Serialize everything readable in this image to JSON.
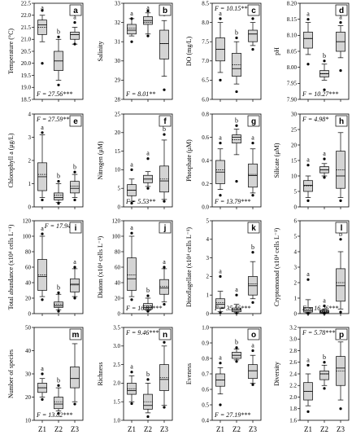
{
  "x_labels": [
    "Z1",
    "Z2",
    "Z3"
  ],
  "chart_data": [
    {
      "type": "box",
      "letter": "a",
      "ylabel": "Temperature (°C)",
      "ylim": [
        18.5,
        22.5
      ],
      "yticks": [
        18.5,
        19.0,
        19.5,
        20.0,
        20.5,
        21.0,
        21.5,
        22.0,
        22.5
      ],
      "decimals": 1,
      "stat_label": "F = 27.56***",
      "stat_pos": "bottom-left",
      "boxes": [
        {
          "lo": 20.9,
          "q1": 21.2,
          "median": 21.6,
          "q3": 21.8,
          "hi": 22.0,
          "mean": 21.5,
          "outliers": [
            20.0,
            22.2
          ],
          "sig": "a"
        },
        {
          "lo": 19.3,
          "q1": 19.7,
          "median": 20.1,
          "q3": 20.5,
          "hi": 21.0,
          "mean": 20.1,
          "outliers": [
            19.1,
            21.1
          ],
          "sig": "b"
        },
        {
          "lo": 20.8,
          "q1": 21.0,
          "median": 21.2,
          "q3": 21.3,
          "hi": 21.5,
          "mean": 21.2,
          "outliers": [
            20.8,
            21.7
          ],
          "sig": "a"
        }
      ]
    },
    {
      "type": "box",
      "letter": "b",
      "ylabel": "Salinity",
      "ylim": [
        28,
        33
      ],
      "yticks": [
        28,
        29,
        30,
        31,
        32,
        33
      ],
      "decimals": 0,
      "stat_label": "F = 8.01**",
      "stat_pos": "bottom-left",
      "boxes": [
        {
          "lo": 31.3,
          "q1": 31.4,
          "median": 31.6,
          "q3": 31.9,
          "hi": 32.2,
          "mean": 31.7,
          "outliers": [
            31.0,
            32.2
          ],
          "sig": "a"
        },
        {
          "lo": 31.4,
          "q1": 31.9,
          "median": 32.1,
          "q3": 32.3,
          "hi": 32.5,
          "mean": 32.0,
          "outliers": [
            31.3,
            32.6
          ],
          "sig": "a"
        },
        {
          "lo": 29.2,
          "q1": 30.1,
          "median": 30.9,
          "q3": 31.6,
          "hi": 32.1,
          "mean": 30.9,
          "outliers": [
            28.5,
            32.4
          ],
          "sig": "b"
        }
      ]
    },
    {
      "type": "box",
      "letter": "c",
      "ylabel": "DO (mg/L)",
      "ylim": [
        6.0,
        8.5
      ],
      "yticks": [
        6.0,
        6.5,
        7.0,
        7.5,
        8.0,
        8.5
      ],
      "decimals": 1,
      "stat_label": "F = 10.15***",
      "stat_pos": "top-left",
      "boxes": [
        {
          "lo": 6.7,
          "q1": 7.0,
          "median": 7.3,
          "q3": 7.6,
          "hi": 8.0,
          "mean": 7.3,
          "outliers": [
            6.5,
            8.1
          ],
          "sig": "a"
        },
        {
          "lo": 6.4,
          "q1": 6.6,
          "median": 6.8,
          "q3": 7.2,
          "hi": 7.5,
          "mean": 6.9,
          "outliers": [
            6.2,
            7.6
          ],
          "sig": "b"
        },
        {
          "lo": 7.4,
          "q1": 7.5,
          "median": 7.7,
          "q3": 7.8,
          "hi": 8.0,
          "mean": 7.7,
          "outliers": [
            7.3,
            8.1
          ],
          "sig": "ab"
        }
      ]
    },
    {
      "type": "box",
      "letter": "d",
      "ylabel": "pH",
      "ylim": [
        7.9,
        8.2
      ],
      "yticks": [
        7.9,
        7.95,
        8.0,
        8.05,
        8.1,
        8.15,
        8.2
      ],
      "decimals": 2,
      "stat_label": "F = 10.27***",
      "stat_pos": "bottom-left",
      "boxes": [
        {
          "lo": 8.04,
          "q1": 8.06,
          "median": 8.09,
          "q3": 8.11,
          "hi": 8.14,
          "mean": 8.09,
          "outliers": [
            8.01,
            8.15
          ],
          "sig": "a"
        },
        {
          "lo": 7.96,
          "q1": 7.97,
          "median": 7.98,
          "q3": 7.99,
          "hi": 8.01,
          "mean": 7.98,
          "outliers": [
            7.93,
            8.02
          ],
          "sig": "b"
        },
        {
          "lo": 8.03,
          "q1": 8.05,
          "median": 8.08,
          "q3": 8.11,
          "hi": 8.13,
          "mean": 8.08,
          "outliers": [
            7.99,
            8.14
          ],
          "sig": "a"
        }
      ]
    },
    {
      "type": "box",
      "letter": "e",
      "ylabel": "Chlorophyll a (μg/L)",
      "ylim": [
        0,
        4
      ],
      "yticks": [
        0,
        1,
        2,
        3,
        4
      ],
      "decimals": 0,
      "stat_label": "F = 27.59***",
      "stat_pos": "top-left",
      "boxes": [
        {
          "lo": 0.4,
          "q1": 0.7,
          "median": 1.3,
          "q3": 1.9,
          "hi": 3.1,
          "mean": 1.4,
          "outliers": [
            0.3,
            3.2
          ],
          "sig": "a"
        },
        {
          "lo": 0.2,
          "q1": 0.3,
          "median": 0.4,
          "q3": 0.6,
          "hi": 1.0,
          "mean": 0.5,
          "outliers": [
            0.15,
            1.1
          ],
          "sig": "b"
        },
        {
          "lo": 0.4,
          "q1": 0.6,
          "median": 0.8,
          "q3": 1.1,
          "hi": 1.4,
          "mean": 0.9,
          "outliers": [
            0.3,
            1.5
          ],
          "sig": "b"
        }
      ]
    },
    {
      "type": "box",
      "letter": "f",
      "ylabel": "Nitrogen (μM)",
      "ylim": [
        0,
        25
      ],
      "yticks": [
        0,
        5,
        10,
        15,
        20,
        25
      ],
      "decimals": 0,
      "stat_label": "F = 5.53**",
      "stat_pos": "bottom-left",
      "boxes": [
        {
          "lo": 1.5,
          "q1": 3.0,
          "median": 4.5,
          "q3": 6.0,
          "hi": 7.5,
          "mean": 4.5,
          "outliers": [
            1.0,
            10.0
          ],
          "sig": "a"
        },
        {
          "lo": 5.5,
          "q1": 6.5,
          "median": 7.5,
          "q3": 8.5,
          "hi": 9.5,
          "mean": 7.5,
          "outliers": [
            5.0,
            13.0
          ],
          "sig": "a"
        },
        {
          "lo": 2.0,
          "q1": 4.0,
          "median": 7.0,
          "q3": 11.0,
          "hi": 18.0,
          "mean": 7.5,
          "outliers": [
            1.5,
            19.5
          ],
          "sig": "b"
        }
      ]
    },
    {
      "type": "box",
      "letter": "g",
      "ylabel": "Phosphate (μM)",
      "ylim": [
        0,
        0.8
      ],
      "yticks": [
        0,
        0.2,
        0.4,
        0.6,
        0.8
      ],
      "decimals": 1,
      "stat_label": "F = 13.79***",
      "stat_pos": "bottom-left",
      "boxes": [
        {
          "lo": 0.15,
          "q1": 0.2,
          "median": 0.3,
          "q3": 0.4,
          "hi": 0.5,
          "mean": 0.32,
          "outliers": [
            0.1,
            0.55
          ],
          "sig": "a"
        },
        {
          "lo": 0.45,
          "q1": 0.55,
          "median": 0.6,
          "q3": 0.62,
          "hi": 0.67,
          "mean": 0.58,
          "outliers": [
            0.22,
            0.7
          ],
          "sig": "b"
        },
        {
          "lo": 0.12,
          "q1": 0.17,
          "median": 0.27,
          "q3": 0.37,
          "hi": 0.5,
          "mean": 0.28,
          "outliers": [
            0.1,
            0.55
          ],
          "sig": "a"
        }
      ]
    },
    {
      "type": "box",
      "letter": "h",
      "ylabel": "Silicate (μM)",
      "ylim": [
        0,
        30
      ],
      "yticks": [
        0,
        5,
        10,
        15,
        20,
        25,
        30
      ],
      "decimals": 0,
      "stat_label": "F = 4.98*",
      "stat_pos": "top-left",
      "boxes": [
        {
          "lo": 3.0,
          "q1": 5.0,
          "median": 7.0,
          "q3": 8.5,
          "hi": 10.0,
          "mean": 6.8,
          "outliers": [
            2.0,
            13.5
          ],
          "sig": "a"
        },
        {
          "lo": 10.0,
          "q1": 11.0,
          "median": 12.0,
          "q3": 13.0,
          "hi": 14.0,
          "mean": 12.0,
          "outliers": [
            9.5,
            15.5
          ],
          "sig": "a"
        },
        {
          "lo": 3.0,
          "q1": 6.0,
          "median": 10.0,
          "q3": 18.0,
          "hi": 24.0,
          "mean": 12.0,
          "outliers": [
            2.0,
            26.5
          ],
          "sig": "b"
        }
      ]
    },
    {
      "type": "box",
      "letter": "i",
      "ylabel": "Total abundance (x10⁴ cells L⁻¹)",
      "ylim": [
        0,
        120
      ],
      "yticks": [
        0,
        20,
        40,
        60,
        80,
        100,
        120
      ],
      "decimals": 0,
      "stat_label": "F = 17.94***",
      "stat_pos": "top-right",
      "boxes": [
        {
          "lo": 22,
          "q1": 30,
          "median": 48,
          "q3": 70,
          "hi": 100,
          "mean": 50,
          "outliers": [
            18,
            103
          ],
          "sig": "a"
        },
        {
          "lo": 5,
          "q1": 8,
          "median": 10,
          "q3": 15,
          "hi": 25,
          "mean": 12,
          "outliers": [
            3,
            27
          ],
          "sig": "b"
        },
        {
          "lo": 22,
          "q1": 28,
          "median": 38,
          "q3": 45,
          "hi": 58,
          "mean": 37,
          "outliers": [
            20,
            60
          ],
          "sig": "a"
        }
      ]
    },
    {
      "type": "box",
      "letter": "j",
      "ylabel": "Diatom (x10⁴ cells L⁻¹)",
      "ylim": [
        0,
        120
      ],
      "yticks": [
        0,
        20,
        40,
        60,
        80,
        100,
        120
      ],
      "decimals": 0,
      "stat_label": "F = 16.82***",
      "stat_pos": "bottom-left",
      "boxes": [
        {
          "lo": 22,
          "q1": 30,
          "median": 45,
          "q3": 72,
          "hi": 100,
          "mean": 50,
          "outliers": [
            18,
            104
          ],
          "sig": "a"
        },
        {
          "lo": 4,
          "q1": 6,
          "median": 8,
          "q3": 13,
          "hi": 20,
          "mean": 10,
          "outliers": [
            3,
            23
          ],
          "sig": "b"
        },
        {
          "lo": 15,
          "q1": 25,
          "median": 33,
          "q3": 44,
          "hi": 58,
          "mean": 35,
          "outliers": [
            12,
            60
          ],
          "sig": "a"
        }
      ]
    },
    {
      "type": "box",
      "letter": "k",
      "ylabel": "Dinoflagellate (x10⁴ cells L⁻¹)",
      "ylim": [
        0,
        5
      ],
      "yticks": [
        0,
        1,
        2,
        3,
        4,
        5
      ],
      "decimals": 0,
      "stat_label": "F = 35.55***",
      "stat_pos": "bottom-left",
      "boxes": [
        {
          "lo": 0.1,
          "q1": 0.3,
          "median": 0.5,
          "q3": 0.8,
          "hi": 1.2,
          "mean": 0.6,
          "outliers": [
            0.05,
            2.0
          ],
          "sig": "a"
        },
        {
          "lo": 0.05,
          "q1": 0.1,
          "median": 0.2,
          "q3": 0.3,
          "hi": 0.5,
          "mean": 0.2,
          "outliers": [
            0.02,
            1.0
          ],
          "sig": "a"
        },
        {
          "lo": 0.8,
          "q1": 1.0,
          "median": 1.5,
          "q3": 2.0,
          "hi": 2.8,
          "mean": 1.6,
          "outliers": [
            0.6,
            3.3
          ],
          "sig": "b"
        }
      ]
    },
    {
      "type": "box",
      "letter": "l",
      "ylabel": "Cryptomonad (x10⁴ cells L⁻¹)",
      "ylim": [
        0,
        6
      ],
      "yticks": [
        0,
        1,
        2,
        3,
        4,
        5,
        6
      ],
      "decimals": 0,
      "stat_label": "F = 16.26***",
      "stat_pos": "bottom-left",
      "boxes": [
        {
          "lo": 0.05,
          "q1": 0.1,
          "median": 0.2,
          "q3": 0.4,
          "hi": 0.9,
          "mean": 0.3,
          "outliers": [
            0.0,
            2.2
          ],
          "sig": "a"
        },
        {
          "lo": 0.02,
          "q1": 0.05,
          "median": 0.1,
          "q3": 0.2,
          "hi": 0.3,
          "mean": 0.15,
          "outliers": [
            0.0,
            0.5
          ],
          "sig": "a"
        },
        {
          "lo": 0.3,
          "q1": 0.8,
          "median": 1.8,
          "q3": 2.9,
          "hi": 4.0,
          "mean": 2.0,
          "outliers": [
            0.1,
            4.8
          ],
          "sig": "b"
        }
      ]
    },
    {
      "type": "box",
      "letter": "m",
      "ylabel": "Number of species",
      "ylim": [
        10,
        50
      ],
      "yticks": [
        10,
        20,
        30,
        40,
        50
      ],
      "decimals": 0,
      "stat_label": "F = 13.82***",
      "stat_pos": "bottom-left",
      "boxes": [
        {
          "lo": 20,
          "q1": 22,
          "median": 24,
          "q3": 26,
          "hi": 28,
          "mean": 24,
          "outliers": [
            19,
            30
          ],
          "sig": "a"
        },
        {
          "lo": 14,
          "q1": 15,
          "median": 17,
          "q3": 20,
          "hi": 24,
          "mean": 18,
          "outliers": [
            13,
            25
          ],
          "sig": "b"
        },
        {
          "lo": 18,
          "q1": 24,
          "median": 28,
          "q3": 33,
          "hi": 43,
          "mean": 28,
          "outliers": [
            17,
            48
          ],
          "sig": "a"
        }
      ]
    },
    {
      "type": "box",
      "letter": "n",
      "ylabel": "Richness",
      "ylim": [
        1.0,
        3.5
      ],
      "yticks": [
        1.0,
        1.5,
        2.0,
        2.5,
        3.0,
        3.5
      ],
      "decimals": 1,
      "stat_label": "F = 9.46***",
      "stat_pos": "top-left",
      "boxes": [
        {
          "lo": 1.5,
          "q1": 1.7,
          "median": 1.8,
          "q3": 2.0,
          "hi": 2.2,
          "mean": 1.85,
          "outliers": [
            1.45,
            2.3
          ],
          "sig": "a"
        },
        {
          "lo": 1.2,
          "q1": 1.3,
          "median": 1.4,
          "q3": 1.7,
          "hi": 2.0,
          "mean": 1.5,
          "outliers": [
            1.1,
            2.1
          ],
          "sig": "b"
        },
        {
          "lo": 1.4,
          "q1": 1.8,
          "median": 2.1,
          "q3": 2.5,
          "hi": 3.0,
          "mean": 2.15,
          "outliers": [
            1.35,
            3.1
          ],
          "sig": "a"
        }
      ]
    },
    {
      "type": "box",
      "letter": "o",
      "ylabel": "Eveness",
      "ylim": [
        0.4,
        1.0
      ],
      "yticks": [
        0.4,
        0.5,
        0.6,
        0.7,
        0.8,
        0.9,
        1.0
      ],
      "decimals": 1,
      "stat_label": "F = 27.19***",
      "stat_pos": "bottom-left",
      "boxes": [
        {
          "lo": 0.57,
          "q1": 0.62,
          "median": 0.66,
          "q3": 0.7,
          "hi": 0.74,
          "mean": 0.66,
          "outliers": [
            0.5,
            0.77
          ],
          "sig": "a"
        },
        {
          "lo": 0.79,
          "q1": 0.8,
          "median": 0.82,
          "q3": 0.84,
          "hi": 0.86,
          "mean": 0.82,
          "outliers": [
            0.78,
            0.87
          ],
          "sig": "b"
        },
        {
          "lo": 0.64,
          "q1": 0.67,
          "median": 0.72,
          "q3": 0.76,
          "hi": 0.82,
          "mean": 0.72,
          "outliers": [
            0.63,
            0.85
          ],
          "sig": "a"
        }
      ]
    },
    {
      "type": "box",
      "letter": "p",
      "ylabel": "Diversity",
      "ylim": [
        1.6,
        3.2
      ],
      "yticks": [
        1.6,
        1.8,
        2.0,
        2.2,
        2.4,
        2.6,
        2.8,
        3.0,
        3.2
      ],
      "decimals": 1,
      "stat_label": "F = 5.78***",
      "stat_pos": "top-left",
      "boxes": [
        {
          "lo": 1.85,
          "q1": 1.95,
          "median": 2.1,
          "q3": 2.25,
          "hi": 2.4,
          "mean": 2.1,
          "outliers": [
            1.75,
            2.55
          ],
          "sig": "a"
        },
        {
          "lo": 2.2,
          "q1": 2.3,
          "median": 2.4,
          "q3": 2.45,
          "hi": 2.55,
          "mean": 2.4,
          "outliers": [
            2.15,
            2.6
          ],
          "sig": "b"
        },
        {
          "lo": 1.95,
          "q1": 2.2,
          "median": 2.5,
          "q3": 2.7,
          "hi": 2.95,
          "mean": 2.45,
          "outliers": [
            1.8,
            3.05
          ],
          "sig": "b"
        }
      ]
    }
  ]
}
